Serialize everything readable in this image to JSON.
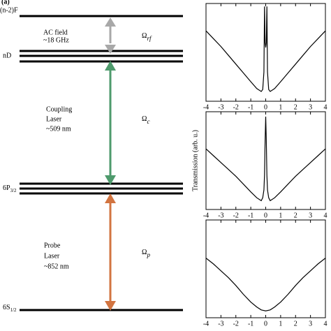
{
  "diagram": {
    "panel_label": "(a)",
    "levels": [
      {
        "label": "(n-2)F"
      },
      {
        "label": "nD"
      },
      {
        "label": "6P",
        "sub": "3/2"
      },
      {
        "label": "6S",
        "sub": "1/2"
      }
    ],
    "transitions": [
      {
        "lines": [
          "AC field",
          "~18 GHz"
        ],
        "symbol": "Ω",
        "sub": "rf"
      },
      {
        "lines": [
          "Coupling",
          "Laser",
          "~509 nm"
        ],
        "symbol": "Ω",
        "sub": "c"
      },
      {
        "lines": [
          "Probe",
          "Laser",
          "~852 nm"
        ],
        "symbol": "Ω",
        "sub": "p"
      }
    ]
  },
  "ylabel": "Transmission (arb. u.)",
  "chart_data": [
    {
      "type": "line",
      "color": "#000000",
      "x": [
        -4,
        -3.5,
        -3,
        -2.5,
        -2,
        -1.5,
        -1,
        -0.6,
        -0.3,
        -0.2,
        -0.12,
        -0.08,
        -0.04,
        0,
        0.04,
        0.08,
        0.12,
        0.2,
        0.3,
        0.6,
        1,
        1.5,
        2,
        2.5,
        3,
        3.5,
        4
      ],
      "values": [
        0.72,
        0.64,
        0.56,
        0.47,
        0.38,
        0.29,
        0.2,
        0.13,
        0.1,
        0.12,
        0.3,
        0.97,
        0.6,
        0.55,
        0.6,
        0.97,
        0.3,
        0.12,
        0.1,
        0.13,
        0.2,
        0.29,
        0.38,
        0.47,
        0.56,
        0.64,
        0.72
      ],
      "xlim": [
        -4,
        4
      ],
      "xticks": [
        -4,
        -3,
        -2,
        -1,
        0,
        1,
        2,
        3,
        4
      ],
      "ylim": [
        0,
        1
      ]
    },
    {
      "type": "line",
      "color": "#000000",
      "x": [
        -4,
        -3.5,
        -3,
        -2.5,
        -2,
        -1.5,
        -1,
        -0.6,
        -0.3,
        -0.2,
        -0.12,
        -0.08,
        -0.04,
        0,
        0.04,
        0.08,
        0.12,
        0.2,
        0.3,
        0.6,
        1,
        1.5,
        2,
        2.5,
        3,
        3.5,
        4
      ],
      "values": [
        0.62,
        0.55,
        0.48,
        0.41,
        0.34,
        0.26,
        0.18,
        0.12,
        0.09,
        0.12,
        0.2,
        0.35,
        0.7,
        0.95,
        0.7,
        0.35,
        0.2,
        0.12,
        0.09,
        0.12,
        0.18,
        0.26,
        0.34,
        0.41,
        0.48,
        0.55,
        0.62
      ],
      "xlim": [
        -4,
        4
      ],
      "xticks": [
        -4,
        -3,
        -2,
        -1,
        0,
        1,
        2,
        3,
        4
      ],
      "ylim": [
        0,
        1
      ]
    },
    {
      "type": "line",
      "color": "#000000",
      "x": [
        -4,
        -3.5,
        -3,
        -2.5,
        -2,
        -1.5,
        -1,
        -0.6,
        -0.3,
        0,
        0.3,
        0.6,
        1,
        1.5,
        2,
        2.5,
        3,
        3.5,
        4
      ],
      "values": [
        0.61,
        0.55,
        0.48,
        0.41,
        0.33,
        0.24,
        0.16,
        0.11,
        0.08,
        0.07,
        0.08,
        0.11,
        0.16,
        0.24,
        0.33,
        0.41,
        0.48,
        0.55,
        0.61
      ],
      "xlim": [
        -4,
        4
      ],
      "xticks": [
        -4,
        -3,
        -2,
        -1,
        0,
        1,
        2,
        3,
        4
      ],
      "ylim": [
        0,
        1
      ]
    }
  ]
}
